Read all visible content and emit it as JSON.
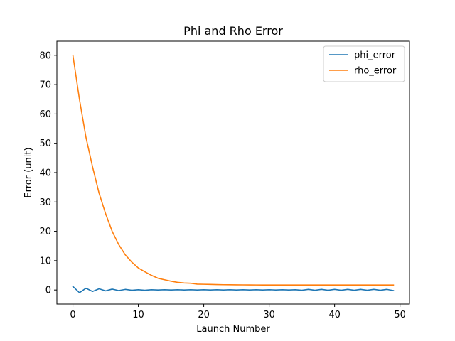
{
  "chart_data": {
    "type": "line",
    "title": "Phi and Rho Error",
    "xlabel": "Launch Number",
    "ylabel": "Error (unit)",
    "xlim": [
      -2.45,
      51.45
    ],
    "ylim": [
      -4.8,
      84.8
    ],
    "xticks": [
      0,
      10,
      20,
      30,
      40,
      50
    ],
    "yticks": [
      0,
      10,
      20,
      30,
      40,
      50,
      60,
      70,
      80
    ],
    "grid": false,
    "legend_position": "top-right",
    "x": [
      0,
      1,
      2,
      3,
      4,
      5,
      6,
      7,
      8,
      9,
      10,
      11,
      12,
      13,
      14,
      15,
      16,
      17,
      18,
      19,
      20,
      21,
      22,
      23,
      24,
      25,
      26,
      27,
      28,
      29,
      30,
      31,
      32,
      33,
      34,
      35,
      36,
      37,
      38,
      39,
      40,
      41,
      42,
      43,
      44,
      45,
      46,
      47,
      48,
      49
    ],
    "series": [
      {
        "name": "phi_error",
        "color": "#1f77b4",
        "values": [
          1.2,
          -0.9,
          0.6,
          -0.5,
          0.4,
          -0.3,
          0.3,
          -0.2,
          0.2,
          -0.1,
          0.1,
          -0.1,
          0.1,
          0.0,
          0.1,
          0.0,
          0.1,
          0.0,
          0.1,
          0.0,
          0.1,
          0.0,
          0.1,
          0.0,
          0.1,
          0.0,
          0.1,
          0.0,
          0.1,
          0.0,
          0.1,
          0.0,
          0.1,
          0.0,
          0.1,
          -0.1,
          0.2,
          -0.1,
          0.2,
          -0.1,
          0.2,
          -0.1,
          0.2,
          -0.1,
          0.2,
          -0.1,
          0.2,
          -0.1,
          0.2,
          -0.2
        ]
      },
      {
        "name": "rho_error",
        "color": "#ff7f0e",
        "values": [
          80,
          65,
          52,
          42,
          33,
          26,
          20,
          15.5,
          12,
          9.5,
          7.5,
          6.2,
          5,
          4,
          3.5,
          3,
          2.6,
          2.4,
          2.3,
          2.0,
          1.95,
          1.9,
          1.85,
          1.8,
          1.78,
          1.76,
          1.74,
          1.72,
          1.71,
          1.7,
          1.7,
          1.7,
          1.7,
          1.7,
          1.7,
          1.7,
          1.7,
          1.7,
          1.7,
          1.7,
          1.7,
          1.7,
          1.7,
          1.7,
          1.7,
          1.7,
          1.7,
          1.7,
          1.7,
          1.7
        ]
      }
    ]
  }
}
